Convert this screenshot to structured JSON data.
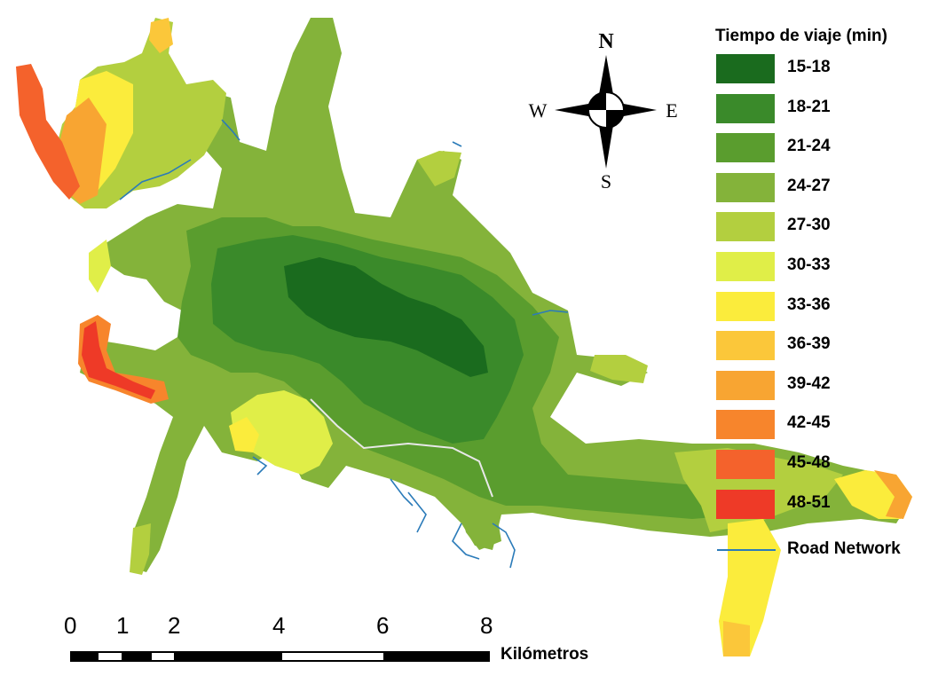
{
  "legend": {
    "title": "Tiempo de viaje (min)",
    "classes": [
      {
        "label": "15-18",
        "color": "#1a6b1e"
      },
      {
        "label": "18-21",
        "color": "#3a8a2a"
      },
      {
        "label": "21-24",
        "color": "#5a9d2e"
      },
      {
        "label": "24-27",
        "color": "#84b33a"
      },
      {
        "label": "27-30",
        "color": "#b3cf3f"
      },
      {
        "label": "30-33",
        "color": "#e0ee48"
      },
      {
        "label": "33-36",
        "color": "#fbec3c"
      },
      {
        "label": "36-39",
        "color": "#fbc73a"
      },
      {
        "label": "39-42",
        "color": "#f8a532"
      },
      {
        "label": "42-45",
        "color": "#f7852c"
      },
      {
        "label": "45-48",
        "color": "#f4622c"
      },
      {
        "label": "48-51",
        "color": "#ee3a27"
      }
    ],
    "road_label": "Road Network",
    "road_color": "#2b7bb9"
  },
  "compass": {
    "north": "N",
    "south": "S",
    "east": "E",
    "west": "W"
  },
  "scale_bar": {
    "ticks": [
      "0",
      "1",
      "2",
      "4",
      "6",
      "8"
    ],
    "unit": "Kilómetros"
  }
}
